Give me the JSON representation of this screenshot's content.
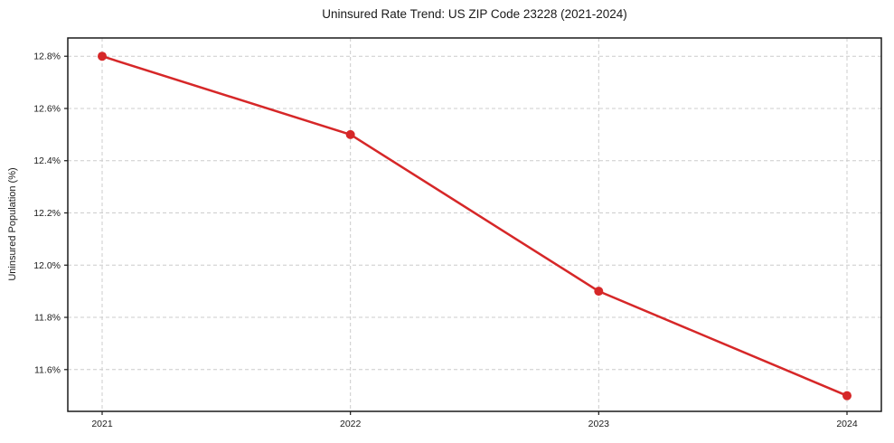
{
  "chart_data": {
    "type": "line",
    "title": "Uninsured Rate Trend: US ZIP Code 23228 (2021-2024)",
    "xlabel": "",
    "ylabel": "Uninsured Population (%)",
    "x": [
      2021,
      2022,
      2023,
      2024
    ],
    "series": [
      {
        "name": "Uninsured Population (%)",
        "values": [
          12.8,
          12.5,
          11.9,
          11.5
        ]
      }
    ],
    "yticks": [
      11.6,
      11.8,
      12.0,
      12.2,
      12.4,
      12.6,
      12.8
    ],
    "ytick_suffix": "%",
    "ylim": [
      11.44,
      12.87
    ],
    "grid": "both-dashed",
    "legend": "none",
    "line_color": "#d62728",
    "marker": "circle",
    "marker_radius": 5,
    "grid_color": "#cccccc",
    "frame_color": "#1a1a1a",
    "background_color": "#ffffff"
  }
}
